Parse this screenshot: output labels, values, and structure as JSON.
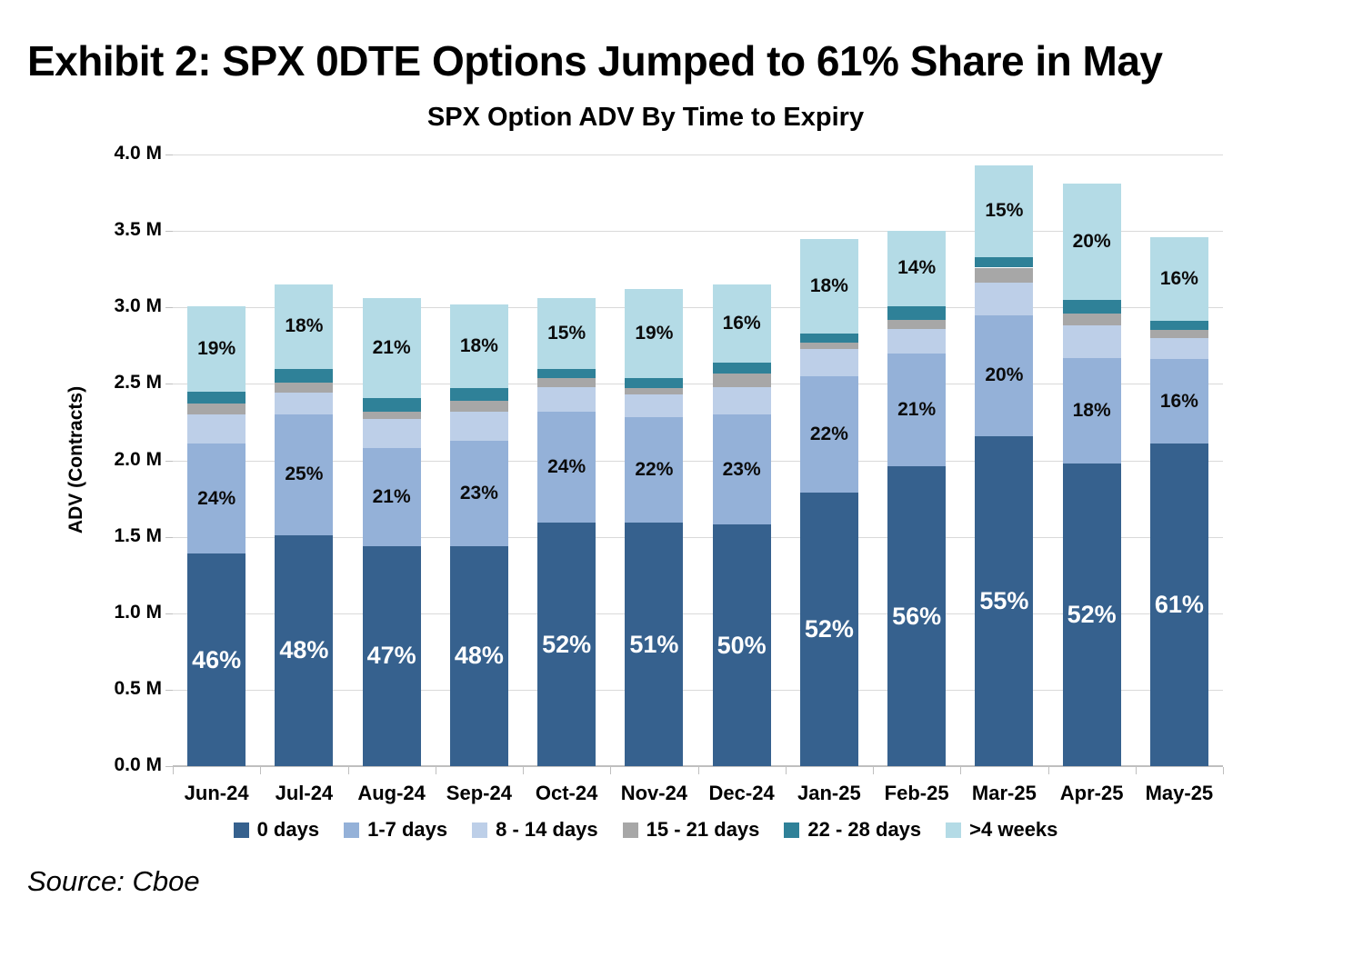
{
  "exhibit_title": "Exhibit 2: SPX 0DTE Options Jumped to 61% Share in May",
  "source_note": "Source: Cboe",
  "colors": {
    "gridline": "#D9D9D9",
    "axis": "#BFBFBF",
    "title_text": "#000000",
    "segment_label_dark": "#0B0B0B",
    "segment_label_light": "#FFFFFF"
  },
  "chart_data": {
    "type": "bar",
    "stacked": true,
    "title": "SPX Option ADV By Time to Expiry",
    "ylabel": "ADV (Contracts)",
    "units": "millions of contracts",
    "ylim": [
      0,
      4.0
    ],
    "ytick_step": 0.5,
    "yticks": [
      "0.0 M",
      "0.5 M",
      "1.0 M",
      "1.5 M",
      "2.0 M",
      "2.5 M",
      "3.0 M",
      "3.5 M",
      "4.0 M"
    ],
    "grid": true,
    "legend_position": "bottom",
    "categories": [
      "Jun-24",
      "Jul-24",
      "Aug-24",
      "Sep-24",
      "Oct-24",
      "Nov-24",
      "Dec-24",
      "Jan-25",
      "Feb-25",
      "Mar-25",
      "Apr-25",
      "May-25"
    ],
    "totals_M": [
      3.01,
      3.15,
      3.06,
      3.02,
      3.06,
      3.12,
      3.15,
      3.45,
      3.5,
      3.93,
      3.81,
      3.46
    ],
    "series": [
      {
        "name": "0 days",
        "color": "#36618E",
        "label_color": "#FFFFFF",
        "values": [
          1.39,
          1.51,
          1.44,
          1.44,
          1.59,
          1.59,
          1.58,
          1.79,
          1.96,
          2.16,
          1.98,
          2.11
        ],
        "labels": [
          "46%",
          "48%",
          "47%",
          "48%",
          "52%",
          "51%",
          "50%",
          "52%",
          "56%",
          "55%",
          "52%",
          "61%"
        ]
      },
      {
        "name": "1-7 days",
        "color": "#94B1D8",
        "label_color": "#0B0B0B",
        "values": [
          0.72,
          0.79,
          0.64,
          0.69,
          0.73,
          0.69,
          0.72,
          0.76,
          0.74,
          0.79,
          0.69,
          0.55
        ],
        "labels": [
          "24%",
          "25%",
          "21%",
          "23%",
          "24%",
          "22%",
          "23%",
          "22%",
          "21%",
          "20%",
          "18%",
          "16%"
        ]
      },
      {
        "name": "8 - 14 days",
        "color": "#BDCFE8",
        "label_color": null,
        "values": [
          0.19,
          0.14,
          0.19,
          0.19,
          0.16,
          0.15,
          0.18,
          0.18,
          0.16,
          0.21,
          0.21,
          0.14
        ],
        "labels": null
      },
      {
        "name": "15 - 21 days",
        "color": "#A7A7A7",
        "label_color": null,
        "values": [
          0.07,
          0.07,
          0.05,
          0.07,
          0.06,
          0.04,
          0.09,
          0.04,
          0.06,
          0.1,
          0.08,
          0.05
        ],
        "labels": null
      },
      {
        "name": "22 - 28 days",
        "color": "#2F8198",
        "label_color": null,
        "values": [
          0.08,
          0.09,
          0.09,
          0.08,
          0.06,
          0.07,
          0.07,
          0.06,
          0.09,
          0.07,
          0.09,
          0.06
        ],
        "labels": null
      },
      {
        "name": ">4 weeks",
        "color": "#B4DBE6",
        "label_color": "#0B0B0B",
        "values": [
          0.56,
          0.55,
          0.65,
          0.55,
          0.46,
          0.58,
          0.51,
          0.62,
          0.49,
          0.6,
          0.76,
          0.55
        ],
        "labels": [
          "19%",
          "18%",
          "21%",
          "18%",
          "15%",
          "19%",
          "16%",
          "18%",
          "14%",
          "15%",
          "20%",
          "16%"
        ]
      }
    ]
  }
}
